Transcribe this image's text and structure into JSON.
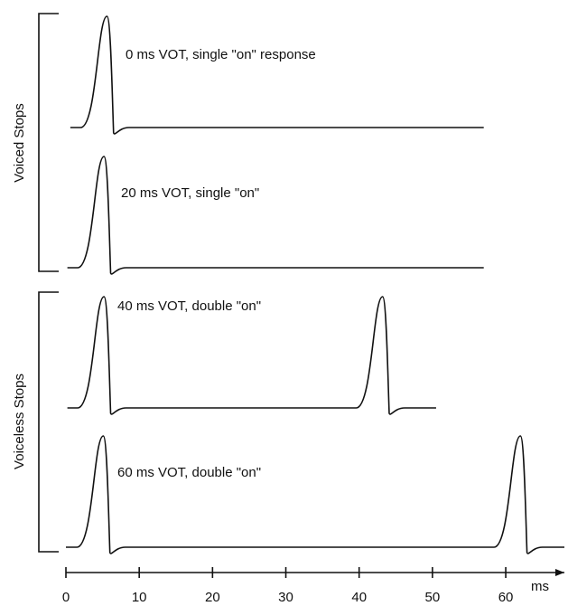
{
  "groups": [
    {
      "label": "Voiced Stops"
    },
    {
      "label": "Voiceless Stops"
    }
  ],
  "traces": [
    {
      "label": "0 ms VOT, single \"on\" response",
      "start": 0.6,
      "end": 57,
      "pulses": [
        5.6
      ]
    },
    {
      "label": "20 ms VOT, single \"on\"",
      "start": 0.2,
      "end": 57,
      "pulses": [
        5.2
      ]
    },
    {
      "label": "40 ms VOT, double \"on\"",
      "start": 0.2,
      "end": 50.5,
      "pulses": [
        5.2,
        43.2
      ]
    },
    {
      "label": "60 ms VOT, double \"on\"",
      "start": 0,
      "end": 68,
      "pulses": [
        5.1,
        62
      ]
    }
  ],
  "axis": {
    "label": "ms",
    "xlim": [
      0,
      68
    ],
    "xticks": [
      0,
      10,
      20,
      30,
      40,
      50,
      60
    ]
  }
}
